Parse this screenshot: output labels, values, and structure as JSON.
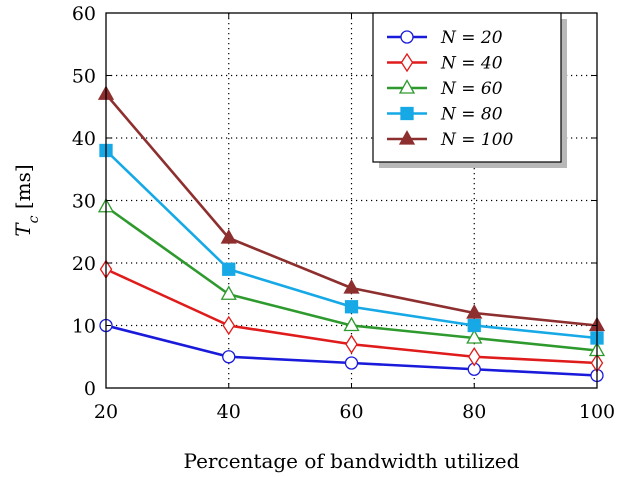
{
  "chart_data": {
    "type": "line",
    "xlabel": "Percentage of bandwidth utilized",
    "ylabel_main": "T",
    "ylabel_sub": "c",
    "ylabel_unit": " [ms]",
    "x": [
      20,
      40,
      60,
      80,
      100
    ],
    "xlim": [
      20,
      100
    ],
    "ylim": [
      0,
      60
    ],
    "xticks": [
      20,
      40,
      60,
      80,
      100
    ],
    "yticks": [
      0,
      10,
      20,
      30,
      40,
      50,
      60
    ],
    "grid": true,
    "legend_position": "top-right",
    "series": [
      {
        "name": "N = 20",
        "values": [
          10,
          5,
          4,
          3,
          2
        ],
        "color": "#1a1adb",
        "marker": "circle-open"
      },
      {
        "name": "N = 40",
        "values": [
          19,
          10,
          7,
          5,
          4
        ],
        "color": "#e01b1b",
        "marker": "diamond-open"
      },
      {
        "name": "N = 60",
        "values": [
          29,
          15,
          10,
          8,
          6
        ],
        "color": "#2e9a2e",
        "marker": "triangle-open"
      },
      {
        "name": "N = 80",
        "values": [
          38,
          19,
          13,
          10,
          8
        ],
        "color": "#16a9e6",
        "marker": "square-filled"
      },
      {
        "name": "N = 100",
        "values": [
          47,
          24,
          16,
          12,
          10
        ],
        "color": "#8e2f2f",
        "marker": "triangle-filled"
      }
    ]
  }
}
